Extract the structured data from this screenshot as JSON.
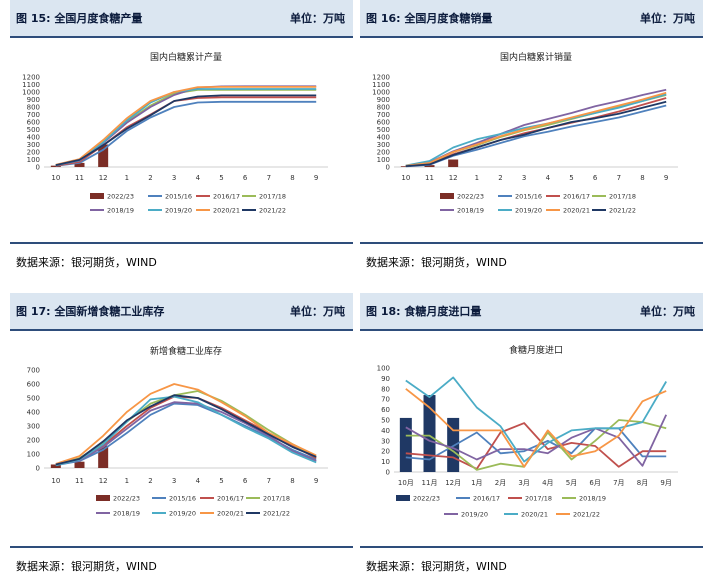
{
  "source_label": "数据来源：银河期货，WIND",
  "unit_label": "单位：万吨",
  "chart_data": [
    {
      "id": "c15",
      "panel_title": "图 15: 全国月度食糖产量",
      "title": "国内白糖累计产量",
      "type": "line",
      "categories": [
        "10",
        "11",
        "12",
        "1",
        "2",
        "3",
        "4",
        "5",
        "6",
        "7",
        "8",
        "9"
      ],
      "ylim": [
        0,
        1200
      ],
      "ytick_step": 100,
      "bar_series": {
        "name": "2022/23",
        "color": "#7b2d26",
        "values": [
          18,
          55,
          300
        ]
      },
      "series": [
        {
          "name": "2015/16",
          "color": "#4f81bd",
          "values": [
            15,
            55,
            230,
            480,
            660,
            800,
            860,
            870,
            870,
            870,
            870,
            870
          ]
        },
        {
          "name": "2016/17",
          "color": "#c0504d",
          "values": [
            18,
            70,
            290,
            530,
            700,
            880,
            920,
            930,
            930,
            930,
            930,
            930
          ]
        },
        {
          "name": "2017/18",
          "color": "#9bbb59",
          "values": [
            25,
            95,
            330,
            600,
            820,
            980,
            1030,
            1030,
            1030,
            1030,
            1030,
            1030
          ]
        },
        {
          "name": "2018/19",
          "color": "#8064a2",
          "values": [
            25,
            85,
            320,
            590,
            800,
            960,
            1060,
            1075,
            1076,
            1076,
            1076,
            1076
          ]
        },
        {
          "name": "2019/20",
          "color": "#4bacc6",
          "values": [
            22,
            90,
            330,
            620,
            860,
            1000,
            1040,
            1040,
            1040,
            1040,
            1040,
            1040
          ]
        },
        {
          "name": "2020/21",
          "color": "#f79646",
          "values": [
            30,
            105,
            360,
            650,
            880,
            1000,
            1065,
            1068,
            1068,
            1068,
            1068,
            1068
          ]
        },
        {
          "name": "2021/22",
          "color": "#1f3864",
          "values": [
            25,
            95,
            290,
            510,
            690,
            880,
            940,
            955,
            955,
            955,
            955,
            955
          ]
        }
      ],
      "legend_order": [
        "2022/23",
        "2015/16",
        "2016/17",
        "2017/18",
        "2018/19",
        "2019/20",
        "2020/21",
        "2021/22"
      ]
    },
    {
      "id": "c16",
      "panel_title": "图 16: 全国月度食糖销量",
      "title": "国内白糖累计销量",
      "type": "line",
      "categories": [
        "10",
        "11",
        "12",
        "1",
        "2",
        "3",
        "4",
        "5",
        "6",
        "7",
        "8",
        "9"
      ],
      "ylim": [
        0,
        1200
      ],
      "ytick_step": 100,
      "bar_series": {
        "name": "2022/23",
        "color": "#7b2d26",
        "values": [
          10,
          25,
          100
        ]
      },
      "series": [
        {
          "name": "2015/16",
          "color": "#4f81bd",
          "values": [
            10,
            30,
            150,
            230,
            320,
            410,
            470,
            540,
            600,
            660,
            740,
            820
          ]
        },
        {
          "name": "2016/17",
          "color": "#c0504d",
          "values": [
            12,
            40,
            170,
            260,
            360,
            450,
            520,
            590,
            660,
            740,
            830,
            920
          ]
        },
        {
          "name": "2017/18",
          "color": "#9bbb59",
          "values": [
            14,
            50,
            200,
            290,
            400,
            490,
            560,
            640,
            720,
            800,
            880,
            960
          ]
        },
        {
          "name": "2018/19",
          "color": "#8064a2",
          "values": [
            15,
            60,
            210,
            320,
            440,
            560,
            640,
            720,
            810,
            880,
            960,
            1030
          ]
        },
        {
          "name": "2019/20",
          "color": "#4bacc6",
          "values": [
            20,
            80,
            260,
            370,
            440,
            520,
            580,
            650,
            720,
            790,
            880,
            970
          ]
        },
        {
          "name": "2020/21",
          "color": "#f79646",
          "values": [
            16,
            55,
            200,
            300,
            410,
            500,
            580,
            660,
            740,
            820,
            900,
            990
          ]
        },
        {
          "name": "2021/22",
          "color": "#1f3864",
          "values": [
            12,
            35,
            160,
            260,
            360,
            430,
            520,
            600,
            650,
            710,
            790,
            870
          ]
        }
      ],
      "legend_order": [
        "2022/23",
        "2015/16",
        "2016/17",
        "2017/18",
        "2018/19",
        "2019/20",
        "2020/21",
        "2021/22"
      ]
    },
    {
      "id": "c17",
      "panel_title": "图 17: 全国新增食糖工业库存",
      "title": "新增食糖工业库存",
      "type": "line",
      "categories": [
        "10",
        "11",
        "12",
        "1",
        "2",
        "3",
        "4",
        "5",
        "6",
        "7",
        "8",
        "9"
      ],
      "ylim": [
        0,
        700
      ],
      "ytick_step": 100,
      "bar_series": {
        "name": "2022/23",
        "color": "#7b2d26",
        "values": [
          25,
          45,
          160
        ]
      },
      "series": [
        {
          "name": "2015/16",
          "color": "#4f81bd",
          "values": [
            20,
            50,
            130,
            250,
            380,
            460,
            450,
            380,
            300,
            220,
            130,
            60
          ]
        },
        {
          "name": "2016/17",
          "color": "#c0504d",
          "values": [
            22,
            60,
            160,
            300,
            430,
            510,
            500,
            430,
            340,
            250,
            160,
            70
          ]
        },
        {
          "name": "2017/18",
          "color": "#9bbb59",
          "values": [
            25,
            70,
            180,
            330,
            460,
            520,
            550,
            480,
            380,
            270,
            170,
            80
          ]
        },
        {
          "name": "2018/19",
          "color": "#8064a2",
          "values": [
            25,
            55,
            150,
            280,
            410,
            470,
            460,
            400,
            320,
            230,
            120,
            50
          ]
        },
        {
          "name": "2019/20",
          "color": "#4bacc6",
          "values": [
            20,
            60,
            170,
            330,
            490,
            510,
            470,
            380,
            290,
            210,
            110,
            40
          ]
        },
        {
          "name": "2020/21",
          "color": "#f79646",
          "values": [
            30,
            85,
            230,
            400,
            530,
            600,
            560,
            470,
            370,
            250,
            170,
            90
          ]
        },
        {
          "name": "2021/22",
          "color": "#1f3864",
          "values": [
            25,
            65,
            190,
            340,
            440,
            520,
            500,
            420,
            330,
            240,
            150,
            80
          ]
        }
      ],
      "legend_order": [
        "2022/23",
        "2015/16",
        "2016/17",
        "2017/18",
        "2018/19",
        "2019/20",
        "2020/21",
        "2021/22"
      ]
    },
    {
      "id": "c18",
      "panel_title": "图 18: 食糖月度进口量",
      "title": "食糖月度进口",
      "type": "line",
      "categories": [
        "10月",
        "11月",
        "12月",
        "1月",
        "2月",
        "3月",
        "4月",
        "5月",
        "6月",
        "7月",
        "8月",
        "9月"
      ],
      "ylim": [
        0,
        100
      ],
      "ytick_step": 10,
      "bar_series": {
        "name": "2022/23",
        "color": "#1f3864",
        "values": [
          52,
          74,
          52
        ]
      },
      "series": [
        {
          "name": "2016/17",
          "color": "#4f81bd",
          "values": [
            14,
            12,
            25,
            38,
            18,
            20,
            30,
            18,
            42,
            42,
            15,
            15
          ]
        },
        {
          "name": "2017/18",
          "color": "#c0504d",
          "values": [
            18,
            16,
            14,
            3,
            38,
            47,
            22,
            28,
            25,
            5,
            20,
            20
          ]
        },
        {
          "name": "2018/19",
          "color": "#9bbb59",
          "values": [
            35,
            35,
            20,
            2,
            8,
            5,
            38,
            12,
            30,
            50,
            48,
            42
          ]
        },
        {
          "name": "2019/20",
          "color": "#8064a2",
          "values": [
            43,
            30,
            23,
            12,
            22,
            22,
            18,
            33,
            42,
            33,
            6,
            55
          ]
        },
        {
          "name": "2020/21",
          "color": "#4bacc6",
          "values": [
            88,
            72,
            91,
            62,
            44,
            10,
            28,
            40,
            42,
            42,
            48,
            87
          ]
        },
        {
          "name": "2021/22",
          "color": "#f79646",
          "values": [
            80,
            62,
            40,
            40,
            40,
            5,
            40,
            15,
            20,
            35,
            68,
            78
          ]
        }
      ],
      "legend_order": [
        "2022/23",
        "2016/17",
        "2017/18",
        "2018/19",
        "2019/20",
        "2020/21",
        "2021/22"
      ]
    }
  ]
}
